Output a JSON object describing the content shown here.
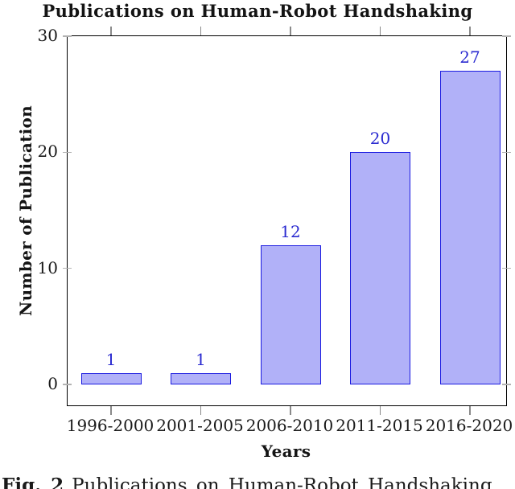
{
  "chart_data": {
    "type": "bar",
    "title": "Publications on Human-Robot Handshaking",
    "xlabel": "Years",
    "ylabel": "Number of Publication",
    "categories": [
      "1996-2000",
      "2001-2005",
      "2006-2010",
      "2011-2015",
      "2016-2020"
    ],
    "values": [
      1,
      1,
      12,
      20,
      27
    ],
    "value_labels": [
      "1",
      "1",
      "12",
      "20",
      "27"
    ],
    "y_ticks": [
      0,
      10,
      20,
      30
    ],
    "ylim": [
      -1.8,
      30
    ],
    "grid": false,
    "legend": null,
    "colors": {
      "bar_fill": "#b1b1f8",
      "bar_border": "#1a1ae0",
      "value_label": "#2a2ad0",
      "axis_frame": "#000000",
      "y_tick": "#b3b3b3",
      "x_tick": "#8a8a8a"
    }
  },
  "caption": {
    "prefix": "Fig. 2",
    "text": "Publications on Human-Robot Handshaking"
  }
}
